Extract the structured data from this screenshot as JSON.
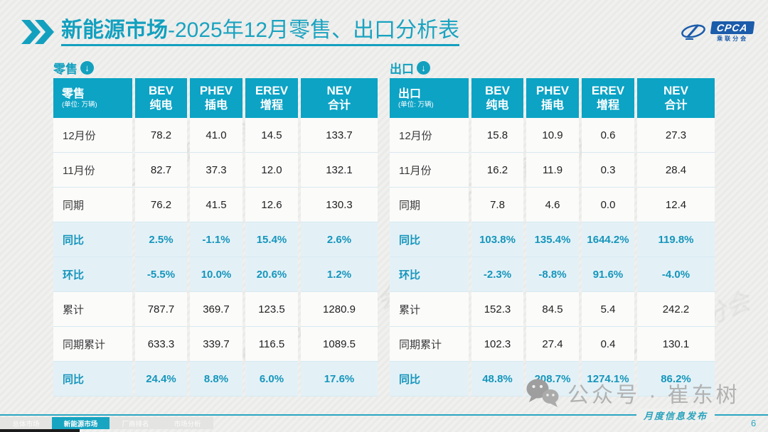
{
  "header": {
    "title_primary": "新能源市场",
    "title_secondary": "-2025年12月零售、出口分析表",
    "logo": {
      "name": "CPCA",
      "sub": "乘联分会"
    }
  },
  "tables": [
    {
      "section_label": "零售",
      "corner_title": "零售",
      "unit": "(单位: 万辆)",
      "columns": [
        {
          "abbr": "BEV",
          "cn": "纯电"
        },
        {
          "abbr": "PHEV",
          "cn": "插电"
        },
        {
          "abbr": "EREV",
          "cn": "增程"
        },
        {
          "abbr": "NEV",
          "cn": "合计"
        }
      ],
      "rows": [
        {
          "label": "12月份",
          "highlight": false,
          "values": [
            "78.2",
            "41.0",
            "14.5",
            "133.7"
          ]
        },
        {
          "label": "11月份",
          "highlight": false,
          "values": [
            "82.7",
            "37.3",
            "12.0",
            "132.1"
          ]
        },
        {
          "label": "同期",
          "highlight": false,
          "values": [
            "76.2",
            "41.5",
            "12.6",
            "130.3"
          ]
        },
        {
          "label": "同比",
          "highlight": true,
          "values": [
            "2.5%",
            "-1.1%",
            "15.4%",
            "2.6%"
          ]
        },
        {
          "label": "环比",
          "highlight": true,
          "values": [
            "-5.5%",
            "10.0%",
            "20.6%",
            "1.2%"
          ]
        },
        {
          "label": "累计",
          "highlight": false,
          "values": [
            "787.7",
            "369.7",
            "123.5",
            "1280.9"
          ]
        },
        {
          "label": "同期累计",
          "highlight": false,
          "values": [
            "633.3",
            "339.7",
            "116.5",
            "1089.5"
          ]
        },
        {
          "label": "同比",
          "highlight": true,
          "values": [
            "24.4%",
            "8.8%",
            "6.0%",
            "17.6%"
          ]
        }
      ]
    },
    {
      "section_label": "出口",
      "corner_title": "出口",
      "unit": "(单位: 万辆)",
      "columns": [
        {
          "abbr": "BEV",
          "cn": "纯电"
        },
        {
          "abbr": "PHEV",
          "cn": "插电"
        },
        {
          "abbr": "EREV",
          "cn": "增程"
        },
        {
          "abbr": "NEV",
          "cn": "合计"
        }
      ],
      "rows": [
        {
          "label": "12月份",
          "highlight": false,
          "values": [
            "15.8",
            "10.9",
            "0.6",
            "27.3"
          ]
        },
        {
          "label": "11月份",
          "highlight": false,
          "values": [
            "16.2",
            "11.9",
            "0.3",
            "28.4"
          ]
        },
        {
          "label": "同期",
          "highlight": false,
          "values": [
            "7.8",
            "4.6",
            "0.0",
            "12.4"
          ]
        },
        {
          "label": "同比",
          "highlight": true,
          "values": [
            "103.8%",
            "135.4%",
            "1644.2%",
            "119.8%"
          ]
        },
        {
          "label": "环比",
          "highlight": true,
          "values": [
            "-2.3%",
            "-8.8%",
            "91.6%",
            "-4.0%"
          ]
        },
        {
          "label": "累计",
          "highlight": false,
          "values": [
            "152.3",
            "84.5",
            "5.4",
            "242.2"
          ]
        },
        {
          "label": "同期累计",
          "highlight": false,
          "values": [
            "102.3",
            "27.4",
            "0.4",
            "130.1"
          ]
        },
        {
          "label": "同比",
          "highlight": true,
          "values": [
            "48.8%",
            "208.7%",
            "1274.1%",
            "86.2%"
          ]
        }
      ]
    }
  ],
  "footer": {
    "wechat_text": "公众号 · 崔东树",
    "publish_label": "月度信息发布",
    "page_number": "6",
    "tabs": [
      {
        "label": "总体市场",
        "active": false
      },
      {
        "label": "新能源市场",
        "active": true
      },
      {
        "label": "厂商排名",
        "active": false
      },
      {
        "label": "市场分析",
        "active": false
      }
    ]
  },
  "watermark": {
    "text": "CPCA 乘联分会"
  },
  "colors": {
    "teal": "#13a0bf",
    "header_bg": "#0ca3c5",
    "highlight_bg": "#e3f1f7",
    "logo_blue": "#1b5cab"
  }
}
